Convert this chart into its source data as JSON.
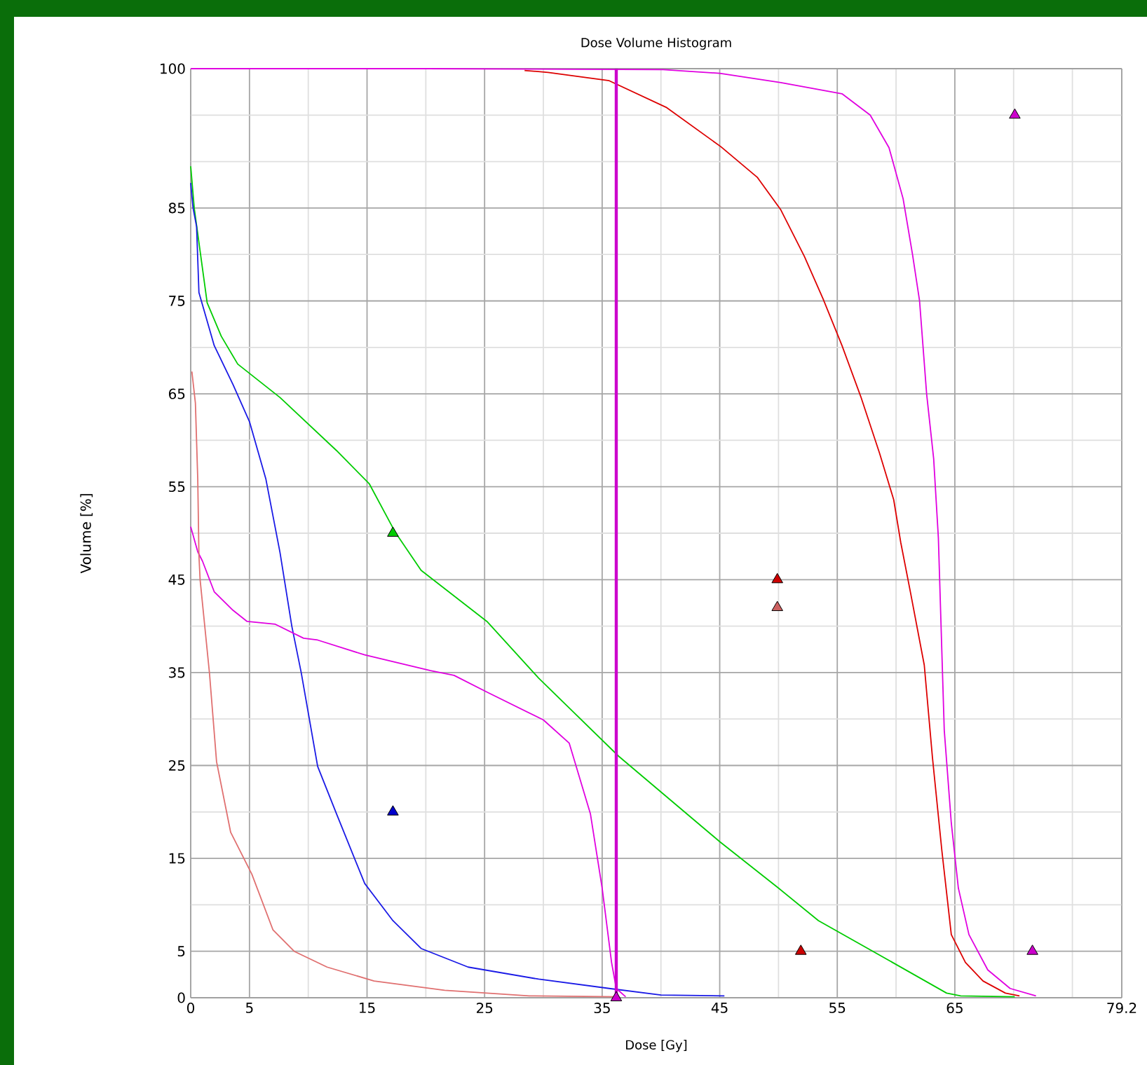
{
  "chart_data": {
    "type": "line",
    "title": "Dose Volume Histogram",
    "xlabel": "Dose [Gy]",
    "ylabel": "Volume [%]",
    "xlim": [
      0,
      79.2
    ],
    "ylim": [
      0,
      100
    ],
    "xticks": [
      0,
      5,
      {
        "value": 10,
        "label": null
      },
      15,
      {
        "value": 20,
        "label": null
      },
      25,
      {
        "value": 30,
        "label": null
      },
      35,
      {
        "value": 40,
        "label": null
      },
      45,
      {
        "value": 50,
        "label": null
      },
      55,
      {
        "value": 60,
        "label": null
      },
      65,
      {
        "value": 70,
        "label": null
      },
      {
        "value": 75,
        "label": null
      },
      79.2
    ],
    "yticks": [
      0,
      5,
      {
        "value": 10,
        "label": null
      },
      15,
      {
        "value": 20,
        "label": null
      },
      25,
      {
        "value": 30,
        "label": null
      },
      35,
      {
        "value": 40,
        "label": null
      },
      45,
      {
        "value": 50,
        "label": null
      },
      55,
      {
        "value": 60,
        "label": null
      },
      65,
      {
        "value": 70,
        "label": null
      },
      75,
      {
        "value": 80,
        "label": null
      },
      85,
      {
        "value": 90,
        "label": null
      },
      {
        "value": 95,
        "label": null
      },
      100
    ],
    "grid": true,
    "line_style": "solid",
    "ref_lines": [
      {
        "axis": "x",
        "value": 36.2,
        "color": "#cc00cc"
      }
    ],
    "series": [
      {
        "color": "#e000e0",
        "x": [
          0,
          20,
          40.2,
          45,
          50.2,
          55.4,
          57.8,
          59.4,
          60.6,
          61.4,
          62,
          62.6,
          63.2,
          63.6,
          64.1,
          64.7,
          65.3,
          66.2,
          67.8,
          69.7,
          71.9
        ],
        "values": [
          100,
          100,
          99.9,
          99.5,
          98.5,
          97.3,
          95,
          91.5,
          86,
          80,
          75,
          65,
          58,
          49.5,
          28.8,
          18.8,
          11.8,
          6.8,
          3,
          1,
          0.2
        ]
      },
      {
        "color": "#dd0000",
        "x": [
          28.4,
          30.4,
          35.6,
          40.5,
          45.1,
          48.2,
          50.2,
          52.2,
          53.8,
          55.4,
          57,
          58.6,
          59.8,
          60.4,
          61.2,
          62.4,
          63.1,
          63.9,
          64.7,
          65.9,
          67.4,
          69.3,
          70.5
        ],
        "values": [
          99.8,
          99.6,
          98.7,
          95.8,
          91.6,
          88.3,
          84.8,
          79.8,
          75.2,
          70.2,
          64.7,
          58.6,
          53.6,
          49,
          43.8,
          35.8,
          25.8,
          15.8,
          6.8,
          3.8,
          1.8,
          0.5,
          0.2
        ]
      },
      {
        "color": "#00cc00",
        "x": [
          0,
          0.3,
          1.4,
          2.6,
          4,
          7.6,
          12.4,
          15.2,
          17.4,
          19.6,
          25.2,
          29.6,
          36.4,
          45,
          50,
          53.4,
          59.7,
          64.3,
          65.5,
          70.1
        ],
        "values": [
          89.5,
          85,
          74.8,
          71.2,
          68.2,
          64.6,
          58.9,
          55.3,
          50.1,
          46,
          40.5,
          34.4,
          26,
          16.8,
          11.8,
          8.3,
          3.8,
          0.5,
          0.2,
          0.1
        ]
      },
      {
        "color": "#1a1ae6",
        "x": [
          0,
          0.2,
          0.5,
          0.7,
          2,
          3.6,
          5,
          6.4,
          7.6,
          8.6,
          9.4,
          10.8,
          12.4,
          14.8,
          17.2,
          19.6,
          23.6,
          29.6,
          35.6,
          40,
          45.4
        ],
        "values": [
          87.7,
          85,
          83,
          75.9,
          70.2,
          66,
          62,
          55.8,
          47.9,
          40,
          35,
          24.9,
          19.8,
          12.3,
          8.3,
          5.3,
          3.3,
          2,
          1,
          0.3,
          0.2
        ]
      },
      {
        "color": "#e000e0",
        "x": [
          0,
          0.6,
          1,
          2,
          3.6,
          4.8,
          7.2,
          9.6,
          10.8,
          14.8,
          20.4,
          22.4,
          25.2,
          30,
          32.2,
          34,
          35,
          35.8,
          36.2,
          37
        ],
        "values": [
          50.7,
          48,
          47,
          43.7,
          41.7,
          40.5,
          40.2,
          38.7,
          38.5,
          36.9,
          35.2,
          34.7,
          32.9,
          29.9,
          27.4,
          19.8,
          11.8,
          3.8,
          1,
          0.1
        ]
      },
      {
        "color": "#e07070",
        "x": [
          0.1,
          0.4,
          0.6,
          0.7,
          0.8,
          1.6,
          2.2,
          3.4,
          5.2,
          7,
          8.8,
          11.6,
          15.6,
          21.6,
          28.8,
          36.4
        ],
        "values": [
          67.4,
          64,
          55.8,
          47.6,
          45,
          34.9,
          25.4,
          17.8,
          13.3,
          7.3,
          5,
          3.3,
          1.8,
          0.8,
          0.2,
          0.1
        ]
      },
      {
        "type": "scatter",
        "marker": "triangle",
        "color": "#00cc00",
        "x": [
          17.2
        ],
        "values": [
          50
        ]
      },
      {
        "type": "scatter",
        "marker": "triangle",
        "color": "#0000cc",
        "x": [
          17.2
        ],
        "values": [
          20
        ]
      },
      {
        "type": "scatter",
        "marker": "triangle",
        "color": "#cc0000",
        "x": [
          49.9,
          51.9
        ],
        "values": [
          45,
          5
        ]
      },
      {
        "type": "scatter",
        "marker": "triangle",
        "color": "#cc6060",
        "x": [
          49.9
        ],
        "values": [
          42
        ]
      },
      {
        "type": "scatter",
        "marker": "triangle",
        "color": "#cc00cc",
        "x": [
          36.2,
          70.1,
          71.6
        ],
        "values": [
          0,
          95,
          5
        ]
      }
    ]
  }
}
